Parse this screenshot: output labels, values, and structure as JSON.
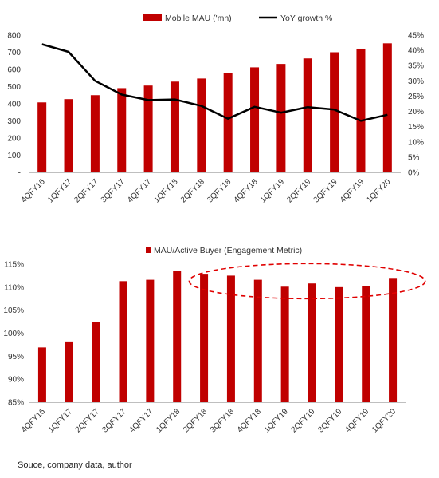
{
  "colors": {
    "bar": "#C00000",
    "line": "#000000",
    "annotation": "#E00000",
    "grid": "#d9d9d9"
  },
  "source_note": "Souce, company data, author",
  "chart_data": [
    {
      "type": "bar+line",
      "categories": [
        "4QFY16",
        "1QFY17",
        "2QFY17",
        "3QFY17",
        "4QFY17",
        "1QFY18",
        "2QFY18",
        "3QFY18",
        "4QFY18",
        "1QFY19",
        "2QFY19",
        "3QFY19",
        "4QFY19",
        "1QFY20"
      ],
      "series": [
        {
          "name": "Mobile MAU ('mn)",
          "type": "bar",
          "axis": "left",
          "values": [
            408,
            427,
            450,
            491,
            506,
            529,
            547,
            578,
            612,
            632,
            664,
            700,
            721,
            752
          ]
        },
        {
          "name": "YoY growth %",
          "type": "line",
          "axis": "right",
          "values": [
            42.0,
            39.5,
            30.0,
            25.5,
            23.7,
            23.9,
            21.8,
            17.6,
            21.5,
            19.6,
            21.4,
            20.6,
            16.9,
            18.9
          ]
        }
      ],
      "y_left": {
        "min": 0,
        "max": 800,
        "ticks": [
          "-",
          "100",
          "200",
          "300",
          "400",
          "500",
          "600",
          "700",
          "800"
        ]
      },
      "y_right": {
        "min": 0,
        "max": 45,
        "ticks": [
          "0%",
          "5%",
          "10%",
          "15%",
          "20%",
          "25%",
          "30%",
          "35%",
          "40%",
          "45%"
        ]
      },
      "legend": {
        "position": "top",
        "entries": [
          "Mobile MAU ('mn)",
          "YoY growth %"
        ]
      },
      "grid": false
    },
    {
      "type": "bar",
      "categories": [
        "4QFY16",
        "1QFY17",
        "2QFY17",
        "3QFY17",
        "4QFY17",
        "1QFY18",
        "2QFY18",
        "3QFY18",
        "4QFY18",
        "1QFY19",
        "2QFY19",
        "3QFY19",
        "4QFY19",
        "1QFY20"
      ],
      "series": [
        {
          "name": "MAU/Active Buyer (Engagement Metric)",
          "values": [
            96.9,
            98.2,
            102.4,
            111.3,
            111.6,
            113.6,
            112.9,
            112.5,
            111.6,
            110.1,
            110.8,
            110.0,
            110.3,
            112.0
          ]
        }
      ],
      "y": {
        "min": 85,
        "max": 115,
        "ticks": [
          "85%",
          "90%",
          "95%",
          "100%",
          "105%",
          "110%",
          "115%"
        ]
      },
      "legend": {
        "position": "top",
        "entries": [
          "MAU/Active Buyer (Engagement Metric)"
        ]
      },
      "annotation": {
        "type": "dashed-ellipse",
        "category_from": "2QFY18",
        "category_to": "1QFY20"
      },
      "grid": false
    }
  ]
}
